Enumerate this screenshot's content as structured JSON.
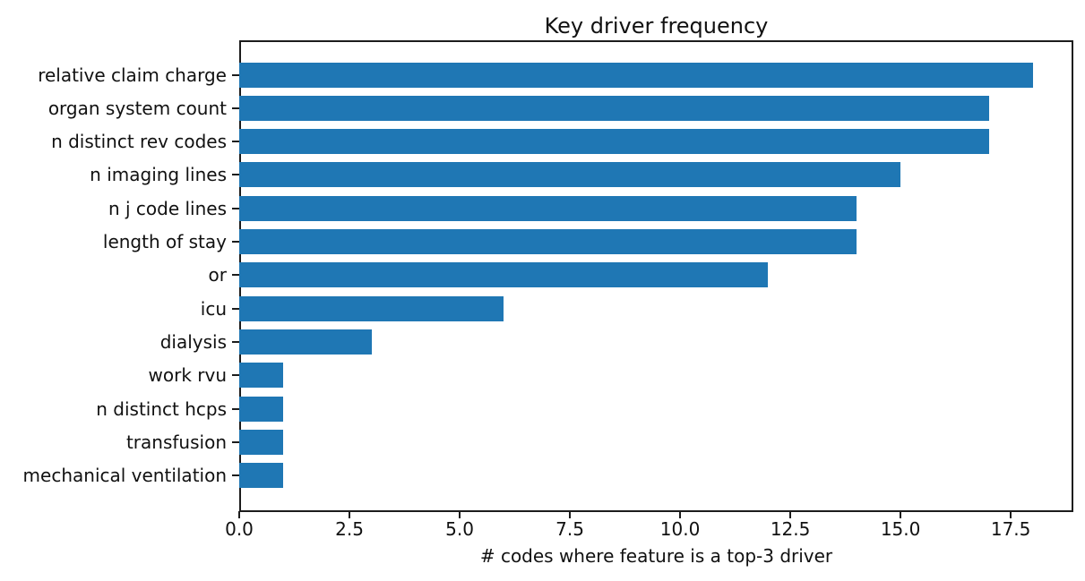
{
  "chart_data": {
    "type": "bar",
    "orientation": "horizontal",
    "title": "Key driver frequency",
    "xlabel": "# codes where feature is a top-3 driver",
    "ylabel": "",
    "categories": [
      "relative claim charge",
      "organ system count",
      "n distinct rev codes",
      "n imaging lines",
      "n j code lines",
      "length of stay",
      "or",
      "icu",
      "dialysis",
      "work rvu",
      "n distinct hcps",
      "transfusion",
      "mechanical ventilation"
    ],
    "values": [
      18,
      17,
      17,
      15,
      14,
      14,
      12,
      6,
      3,
      1,
      1,
      1,
      1
    ],
    "xlim": [
      0,
      18.92
    ],
    "xticks": [
      0.0,
      2.5,
      5.0,
      7.5,
      10.0,
      12.5,
      15.0,
      17.5
    ],
    "xtick_labels": [
      "0.0",
      "2.5",
      "5.0",
      "7.5",
      "10.0",
      "12.5",
      "15.0",
      "17.5"
    ],
    "bar_color": "#1f77b4",
    "spine_color": "#1c1c1c",
    "text_color": "#111111",
    "grid": false,
    "legend": null
  }
}
